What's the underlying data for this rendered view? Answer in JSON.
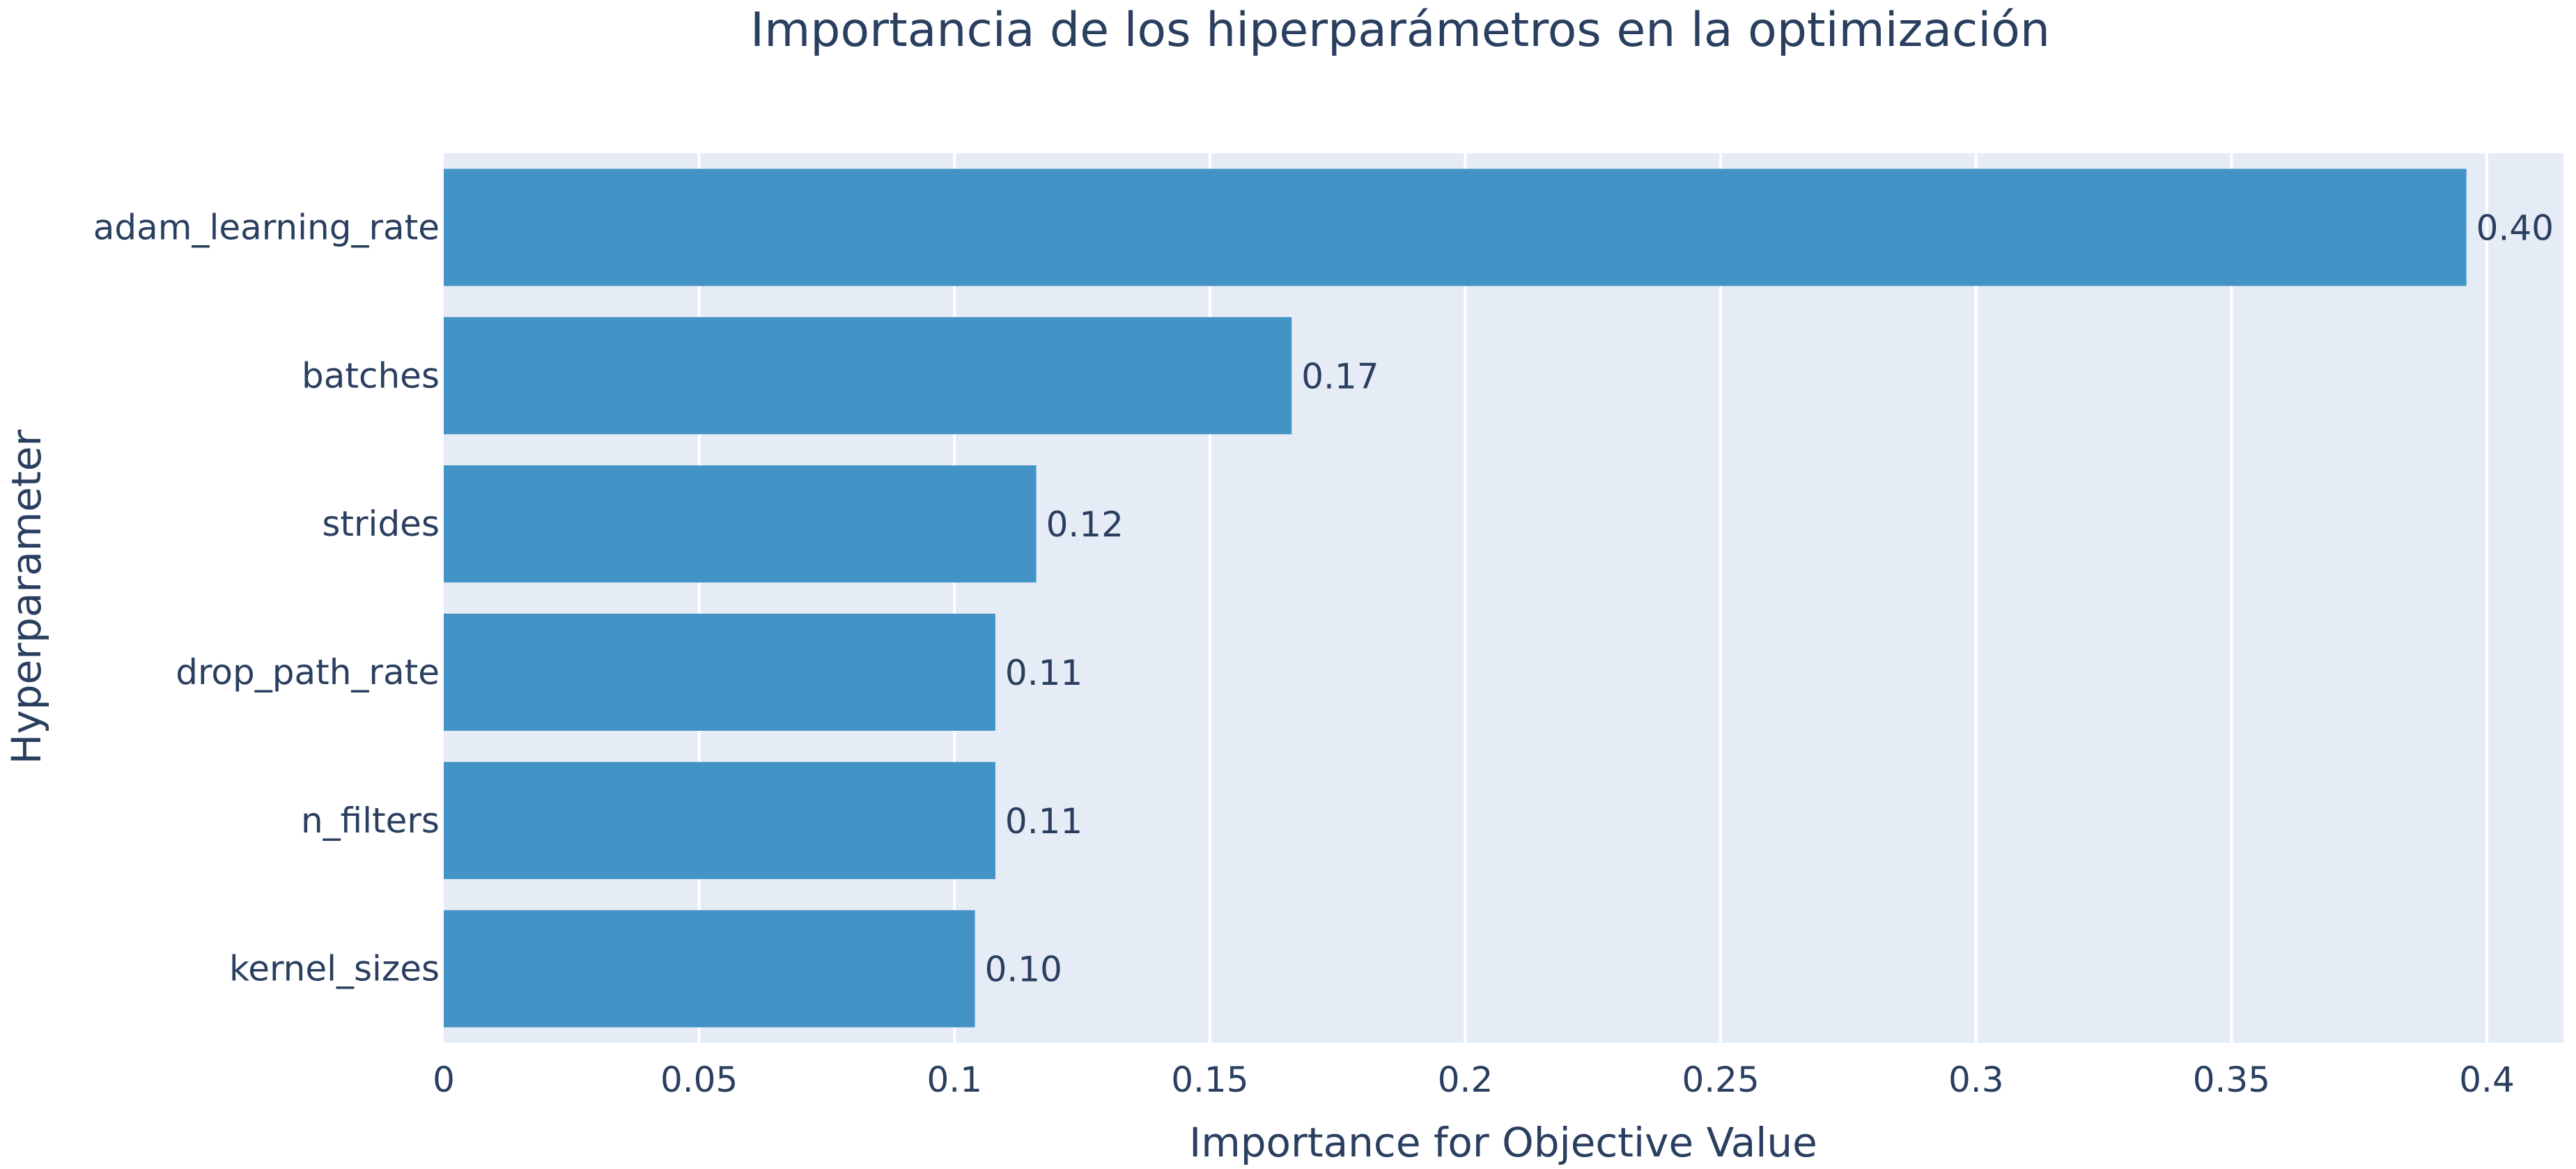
{
  "chart_data": {
    "type": "bar",
    "orientation": "horizontal",
    "title": "Importancia de los hiperparámetros en la optimización",
    "xlabel": "Importance for Objective Value",
    "ylabel": "Hyperparameter",
    "xlim": [
      0,
      0.415
    ],
    "x_ticks": [
      0,
      0.05,
      0.1,
      0.15,
      0.2,
      0.25,
      0.3,
      0.35,
      0.4
    ],
    "x_tick_labels": [
      "0",
      "0.05",
      "0.1",
      "0.15",
      "0.2",
      "0.25",
      "0.3",
      "0.35",
      "0.4"
    ],
    "categories": [
      "adam_learning_rate",
      "batches",
      "strides",
      "drop_path_rate",
      "n_filters",
      "kernel_sizes"
    ],
    "values": [
      0.396,
      0.166,
      0.116,
      0.108,
      0.108,
      0.104
    ],
    "value_labels": [
      "0.40",
      "0.17",
      "0.12",
      "0.11",
      "0.11",
      "0.10"
    ],
    "bar_color": "#4393c6",
    "plot_background": "#e5ecf6",
    "grid": true,
    "gridline_color": "#ffffff",
    "text_color": "#2a3f5f",
    "legend": false
  }
}
